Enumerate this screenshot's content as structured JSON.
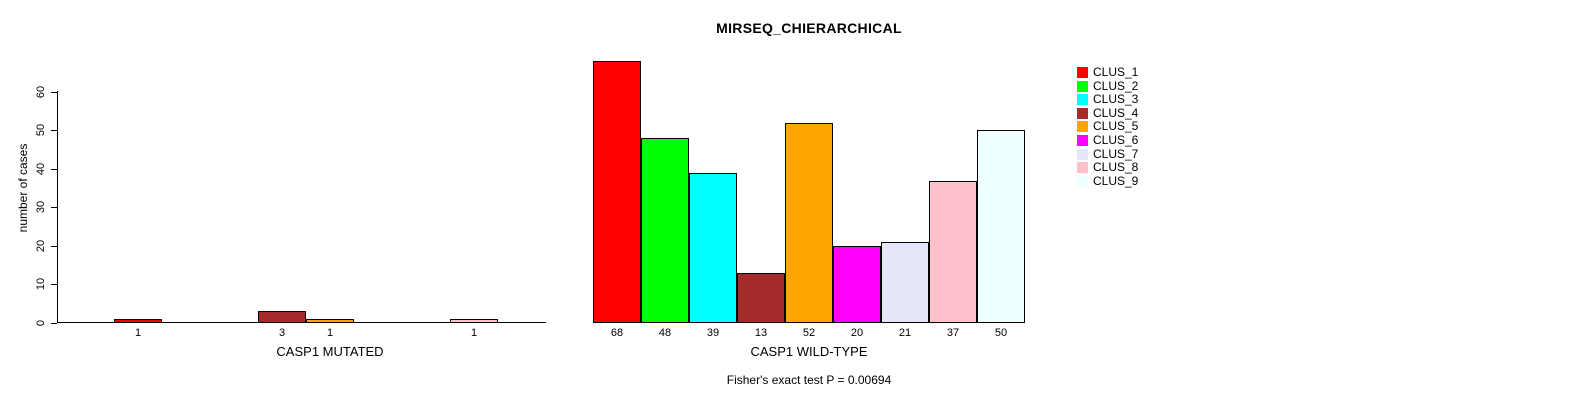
{
  "chart_data": {
    "type": "bar",
    "title": "MIRSEQ_CHIERARCHICAL",
    "ylabel": "number of cases",
    "xlabel": "",
    "ylim": [
      0,
      68
    ],
    "yticks": [
      0,
      10,
      20,
      30,
      40,
      50,
      60
    ],
    "grid": false,
    "categories": [
      "CLUS_1",
      "CLUS_2",
      "CLUS_3",
      "CLUS_4",
      "CLUS_5",
      "CLUS_6",
      "CLUS_7",
      "CLUS_8",
      "CLUS_9"
    ],
    "colors": [
      "#FF0000",
      "#00FF00",
      "#00FFFF",
      "#A52A2A",
      "#FFA500",
      "#FF00FF",
      "#E6E6FA",
      "#FFC0CB",
      "#F0FFFF"
    ],
    "series": [
      {
        "name": "CASP1 MUTATED",
        "values": [
          1,
          0,
          0,
          3,
          1,
          0,
          0,
          1,
          0
        ]
      },
      {
        "name": "CASP1 WILD-TYPE",
        "values": [
          68,
          48,
          39,
          13,
          52,
          20,
          21,
          37,
          50
        ]
      }
    ],
    "bar_labels_shown_for_nonzero_only": true,
    "legend": {
      "position": "right",
      "entries": [
        "CLUS_1",
        "CLUS_2",
        "CLUS_3",
        "CLUS_4",
        "CLUS_5",
        "CLUS_6",
        "CLUS_7",
        "CLUS_8",
        "CLUS_9"
      ]
    },
    "annotation": "Fisher's exact test P = 0.00694"
  }
}
